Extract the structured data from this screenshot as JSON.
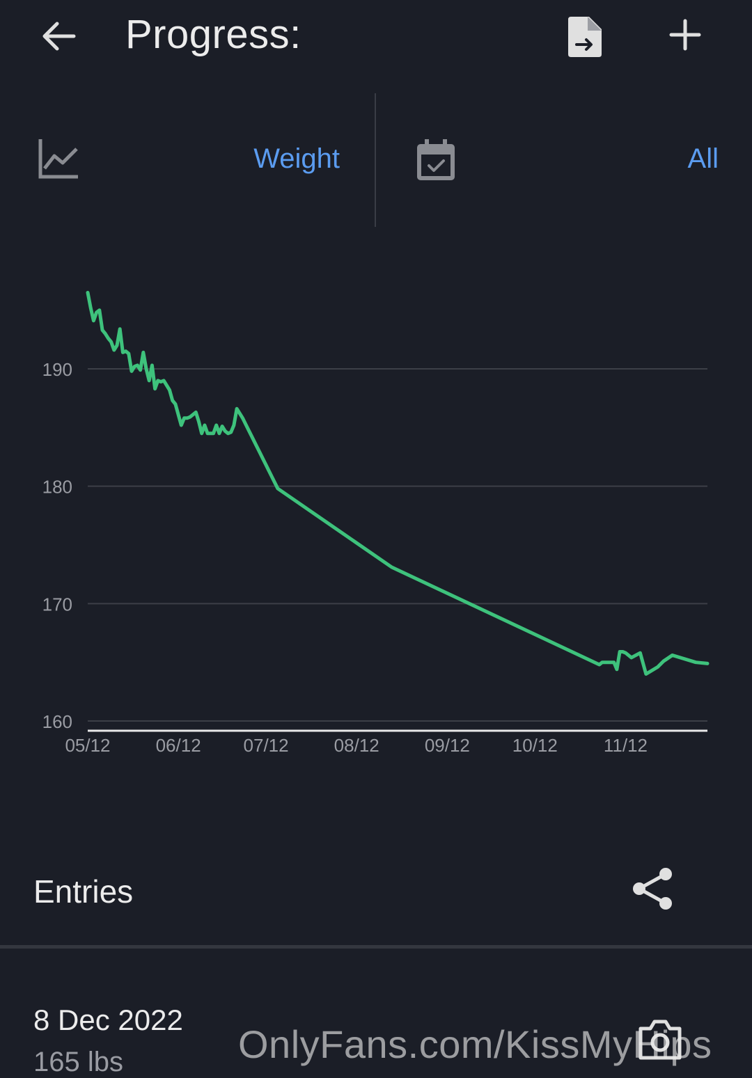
{
  "header": {
    "title": "Progress:"
  },
  "selector": {
    "metric": "Weight",
    "range": "All"
  },
  "chart_data": {
    "type": "line",
    "title": "",
    "xlabel": "",
    "ylabel": "",
    "x_ticks": [
      "05/12",
      "06/12",
      "07/12",
      "08/12",
      "09/12",
      "10/12",
      "11/12"
    ],
    "y_ticks": [
      160,
      170,
      180,
      190
    ],
    "ylim": [
      159,
      197
    ],
    "xlim": [
      0,
      212
    ],
    "grid": true,
    "line_color": "#3ec27c",
    "series": [
      {
        "name": "",
        "x": [
          0,
          1,
          2,
          3,
          4,
          5,
          6,
          7,
          8,
          9,
          10,
          11,
          12,
          13,
          14,
          15,
          16,
          17,
          18,
          19,
          20,
          21,
          22,
          23,
          24,
          25,
          26,
          27,
          28,
          29,
          30,
          31,
          32,
          33,
          34,
          35,
          36,
          37,
          38,
          39,
          40,
          41,
          42,
          43,
          44,
          45,
          46,
          47,
          48,
          49,
          50,
          51,
          52,
          53,
          54,
          55,
          56,
          57,
          58,
          59,
          60,
          61,
          62,
          63,
          64,
          65,
          104,
          175,
          176,
          178,
          180,
          181,
          182,
          183,
          184,
          186,
          189,
          191,
          195,
          197,
          200,
          208,
          212
        ],
        "y": [
          196.5,
          195.2,
          194.1,
          194.8,
          195,
          193.3,
          193,
          192.6,
          192.3,
          191.6,
          192,
          193.4,
          191.4,
          191.5,
          191.3,
          189.8,
          190.2,
          190.3,
          189.9,
          191.4,
          190.0,
          189.0,
          190.3,
          188.3,
          189.0,
          188.9,
          189.0,
          188.6,
          188.2,
          187.3,
          187.0,
          186.1,
          185.2,
          185.8,
          185.8,
          185.9,
          186.1,
          186.3,
          185.5,
          184.5,
          185.2,
          184.5,
          184.5,
          184.5,
          185.2,
          184.5,
          185.1,
          184.7,
          184.5,
          184.6,
          185.2,
          186.6,
          186.2,
          185.8,
          185.3,
          184.8,
          184.3,
          183.8,
          183.3,
          182.8,
          182.3,
          181.8,
          181.3,
          180.8,
          180.3,
          179.8,
          173.1,
          164.8,
          165.0,
          165.0,
          165.0,
          164.4,
          165.9,
          165.9,
          165.8,
          165.4,
          165.8,
          164.0,
          164.6,
          165.1,
          165.6,
          165.0,
          164.9
        ]
      }
    ]
  },
  "entries": {
    "title": "Entries",
    "items": [
      {
        "date": "8 Dec 2022",
        "weight": "165 lbs"
      }
    ]
  },
  "watermark": "OnlyFans.com/KissMyHips",
  "icons": {
    "back": "arrow-back-icon",
    "export": "file-export-icon",
    "add": "plus-icon",
    "metric": "line-chart-icon",
    "calendar": "calendar-check-icon",
    "share": "share-icon",
    "camera": "camera-icon"
  },
  "colors": {
    "background": "#1b1e27",
    "accent": "#5b9cf0",
    "line": "#3ec27c"
  }
}
